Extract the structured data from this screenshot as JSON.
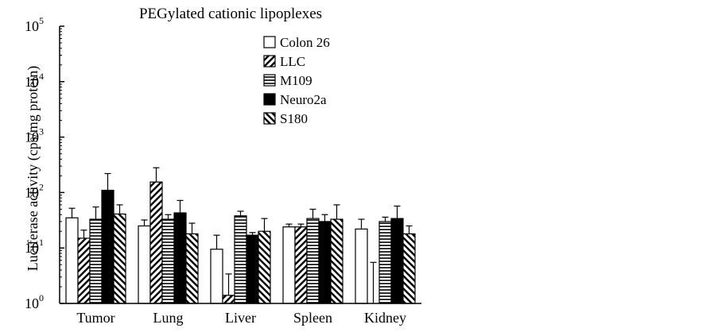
{
  "chart_data": {
    "type": "bar",
    "title": "PEGylated cationic lipoplexes",
    "xlabel": "",
    "ylabel": "Luciferase activity (cps/mg protein)",
    "yscale": "log",
    "ylim": [
      1,
      100000
    ],
    "yticks": [
      {
        "base": "10",
        "exp": "0",
        "value": 1
      },
      {
        "base": "10",
        "exp": "1",
        "value": 10
      },
      {
        "base": "10",
        "exp": "2",
        "value": 100
      },
      {
        "base": "10",
        "exp": "3",
        "value": 1000
      },
      {
        "base": "10",
        "exp": "4",
        "value": 10000
      },
      {
        "base": "10",
        "exp": "5",
        "value": 100000
      }
    ],
    "categories": [
      "Tumor",
      "Lung",
      "Liver",
      "Spleen",
      "Kidney"
    ],
    "legend_position": "top-right",
    "series": [
      {
        "name": "Colon 26",
        "pattern": "open",
        "values": [
          35,
          25,
          9.5,
          24,
          22
        ],
        "errors": [
          52,
          32,
          17,
          27,
          33
        ]
      },
      {
        "name": "LLC",
        "pattern": "diagonal",
        "values": [
          15,
          155,
          1.4,
          24,
          1
        ],
        "errors": [
          21,
          280,
          3.4,
          27,
          5.5
        ]
      },
      {
        "name": "M109",
        "pattern": "horizontal",
        "values": [
          33,
          33,
          38,
          34,
          30
        ],
        "errors": [
          55,
          40,
          46,
          50,
          36
        ]
      },
      {
        "name": "Neuro2a",
        "pattern": "solid",
        "values": [
          110,
          43,
          17,
          30,
          34
        ],
        "errors": [
          220,
          72,
          19,
          40,
          57
        ]
      },
      {
        "name": "S180",
        "pattern": "backdiagonal",
        "values": [
          41,
          18,
          20,
          33,
          18
        ],
        "errors": [
          60,
          28,
          34,
          60,
          25
        ]
      }
    ]
  }
}
